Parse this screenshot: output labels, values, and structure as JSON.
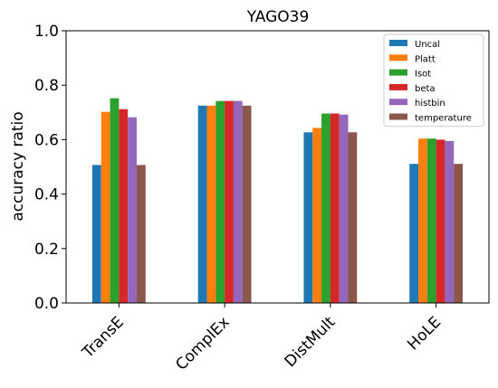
{
  "chart_data": {
    "type": "bar",
    "title": "YAGO39",
    "xlabel": "",
    "ylabel": "accuracy ratio",
    "ylim": [
      0,
      1.0
    ],
    "yticks": [
      "0.0",
      "0.2",
      "0.4",
      "0.6",
      "0.8",
      "1.0"
    ],
    "categories": [
      "TransE",
      "ComplEx",
      "DistMult",
      "HoLE"
    ],
    "legend_position": "top-right",
    "grid": false,
    "series": [
      {
        "name": "Uncal",
        "color": "#1f77b4",
        "values": [
          0.507,
          0.725,
          0.627,
          0.511
        ]
      },
      {
        "name": "Platt",
        "color": "#ff7f0e",
        "values": [
          0.702,
          0.725,
          0.643,
          0.604
        ]
      },
      {
        "name": "Isot",
        "color": "#2ca02c",
        "values": [
          0.752,
          0.742,
          0.696,
          0.604
        ]
      },
      {
        "name": "beta",
        "color": "#d62728",
        "values": [
          0.712,
          0.742,
          0.696,
          0.6
        ]
      },
      {
        "name": "histbin",
        "color": "#9467bd",
        "values": [
          0.682,
          0.742,
          0.692,
          0.595
        ]
      },
      {
        "name": "temperature",
        "color": "#8c564b",
        "values": [
          0.507,
          0.725,
          0.627,
          0.511
        ]
      }
    ]
  }
}
